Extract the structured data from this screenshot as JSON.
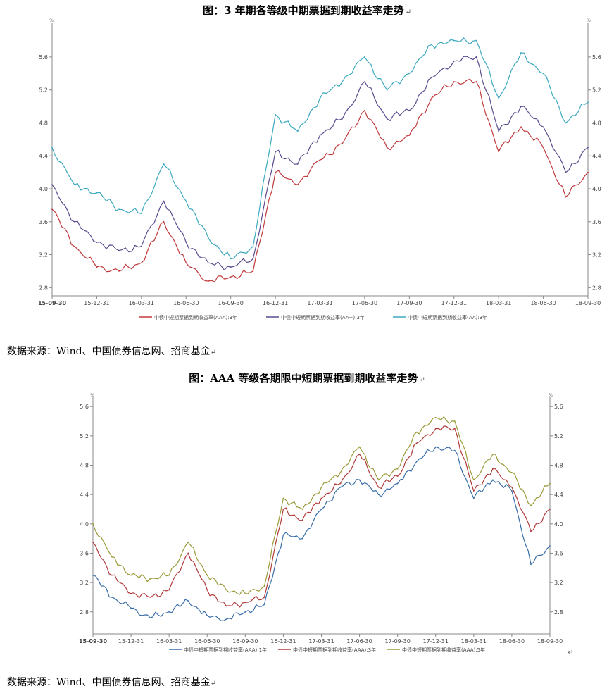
{
  "figures": [
    {
      "title": "图：3 年期各等级中期票据到期收益率走势",
      "source": "数据来源：Wind、中国债券信息网、招商基金"
    },
    {
      "title": "图：AAA 等级各期限中短期票据到期收益率走势",
      "source": "数据来源：Wind、中国债券信息网、招商基金"
    }
  ],
  "paragraph_mark": "↵",
  "chart_data": [
    {
      "type": "line",
      "title": "图：3 年期各等级中期票据到期收益率走势",
      "y_unit": "%",
      "ylim": [
        2.7,
        5.95
      ],
      "yticks": [
        "2.8",
        "3.2",
        "3.6",
        "4.0",
        "4.4",
        "4.8",
        "5.2",
        "5.6"
      ],
      "x_ticks": [
        "15-09-30",
        "15-12-31",
        "16-03-31",
        "16-06-30",
        "16-09-30",
        "16-12-31",
        "17-03-31",
        "17-06-30",
        "17-09-30",
        "17-12-31",
        "18-03-31",
        "18-06-30",
        "18-09-30"
      ],
      "grid": false,
      "legend_position": "bottom",
      "x": [
        "15-09-30",
        "15-11-15",
        "15-12-31",
        "16-02-15",
        "16-03-31",
        "16-05-15",
        "16-06-30",
        "16-08-15",
        "16-09-30",
        "16-11-15",
        "16-12-31",
        "17-02-15",
        "17-03-31",
        "17-05-15",
        "17-06-30",
        "17-08-15",
        "17-09-30",
        "17-11-15",
        "17-12-31",
        "18-02-15",
        "18-03-31",
        "18-05-15",
        "18-06-30",
        "18-08-15",
        "18-09-30"
      ],
      "series": [
        {
          "name": "中债中短期票据到期收益率(AAA):3年",
          "color": "#c0393b",
          "values": [
            3.75,
            3.3,
            3.05,
            3.0,
            3.1,
            3.6,
            3.1,
            2.88,
            2.93,
            3.0,
            4.2,
            4.05,
            4.35,
            4.55,
            4.95,
            4.5,
            4.65,
            5.1,
            5.3,
            5.3,
            4.45,
            4.75,
            4.5,
            3.9,
            4.2
          ]
        },
        {
          "name": "中债中短期票据到期收益率(AA+):3年",
          "color": "#5b4a8e",
          "values": [
            4.05,
            3.6,
            3.35,
            3.25,
            3.3,
            3.85,
            3.35,
            3.1,
            3.05,
            3.15,
            4.45,
            4.3,
            4.65,
            4.85,
            5.3,
            4.85,
            4.95,
            5.35,
            5.55,
            5.6,
            4.7,
            5.0,
            4.75,
            4.2,
            4.5
          ]
        },
        {
          "name": "中债中短期票据到期收益率(AA):3年",
          "color": "#3ba9bf",
          "values": [
            4.5,
            4.05,
            3.95,
            3.75,
            3.7,
            4.3,
            3.85,
            3.4,
            3.15,
            3.3,
            4.9,
            4.7,
            5.1,
            5.3,
            5.6,
            5.2,
            5.4,
            5.75,
            5.8,
            5.8,
            5.1,
            5.65,
            5.4,
            4.8,
            5.05
          ]
        }
      ]
    },
    {
      "type": "line",
      "title": "图：AAA 等级各期限中短期票据到期收益率走势",
      "y_unit": "%",
      "ylim": [
        2.5,
        5.65
      ],
      "yticks": [
        "2.8",
        "3.2",
        "3.6",
        "4.0",
        "4.4",
        "4.8",
        "5.2",
        "5.6"
      ],
      "x_ticks": [
        "15-09-30",
        "15-12-31",
        "16-03-31",
        "16-06-30",
        "16-09-30",
        "16-12-31",
        "17-03-31",
        "17-06-30",
        "17-09-30",
        "17-12-31",
        "18-03-31",
        "18-06-30",
        "18-09-30"
      ],
      "grid": false,
      "legend_position": "bottom",
      "x": [
        "15-09-30",
        "15-11-15",
        "15-12-31",
        "16-02-15",
        "16-03-31",
        "16-05-15",
        "16-06-30",
        "16-08-15",
        "16-09-30",
        "16-11-15",
        "16-12-31",
        "17-02-15",
        "17-03-31",
        "17-05-15",
        "17-06-30",
        "17-08-15",
        "17-09-30",
        "17-11-15",
        "17-12-31",
        "18-02-15",
        "18-03-31",
        "18-05-15",
        "18-06-30",
        "18-08-15",
        "18-09-30"
      ],
      "series": [
        {
          "name": "中债中短期票据到期收益率(AAA):1年",
          "color": "#3a6ea8",
          "values": [
            3.3,
            3.0,
            2.85,
            2.72,
            2.8,
            2.95,
            2.75,
            2.7,
            2.8,
            2.9,
            3.85,
            3.8,
            4.2,
            4.5,
            4.6,
            4.4,
            4.55,
            4.85,
            5.05,
            5.0,
            4.35,
            4.6,
            4.45,
            3.45,
            3.7
          ]
        },
        {
          "name": "中债中短期票据到期收益率(AAA):3年",
          "color": "#b03a3a",
          "values": [
            3.75,
            3.3,
            3.05,
            3.0,
            3.1,
            3.6,
            3.1,
            2.88,
            2.93,
            3.0,
            4.2,
            4.05,
            4.35,
            4.55,
            4.95,
            4.5,
            4.65,
            5.1,
            5.3,
            5.3,
            4.45,
            4.75,
            4.5,
            3.9,
            4.2
          ]
        },
        {
          "name": "中债中短期票据到期收益率(AAA):5年",
          "color": "#9a9a3a",
          "values": [
            4.0,
            3.55,
            3.3,
            3.25,
            3.3,
            3.75,
            3.3,
            3.1,
            3.05,
            3.15,
            4.35,
            4.2,
            4.5,
            4.7,
            5.05,
            4.6,
            4.75,
            5.25,
            5.45,
            5.4,
            4.6,
            4.95,
            4.7,
            4.25,
            4.55
          ]
        }
      ]
    }
  ]
}
